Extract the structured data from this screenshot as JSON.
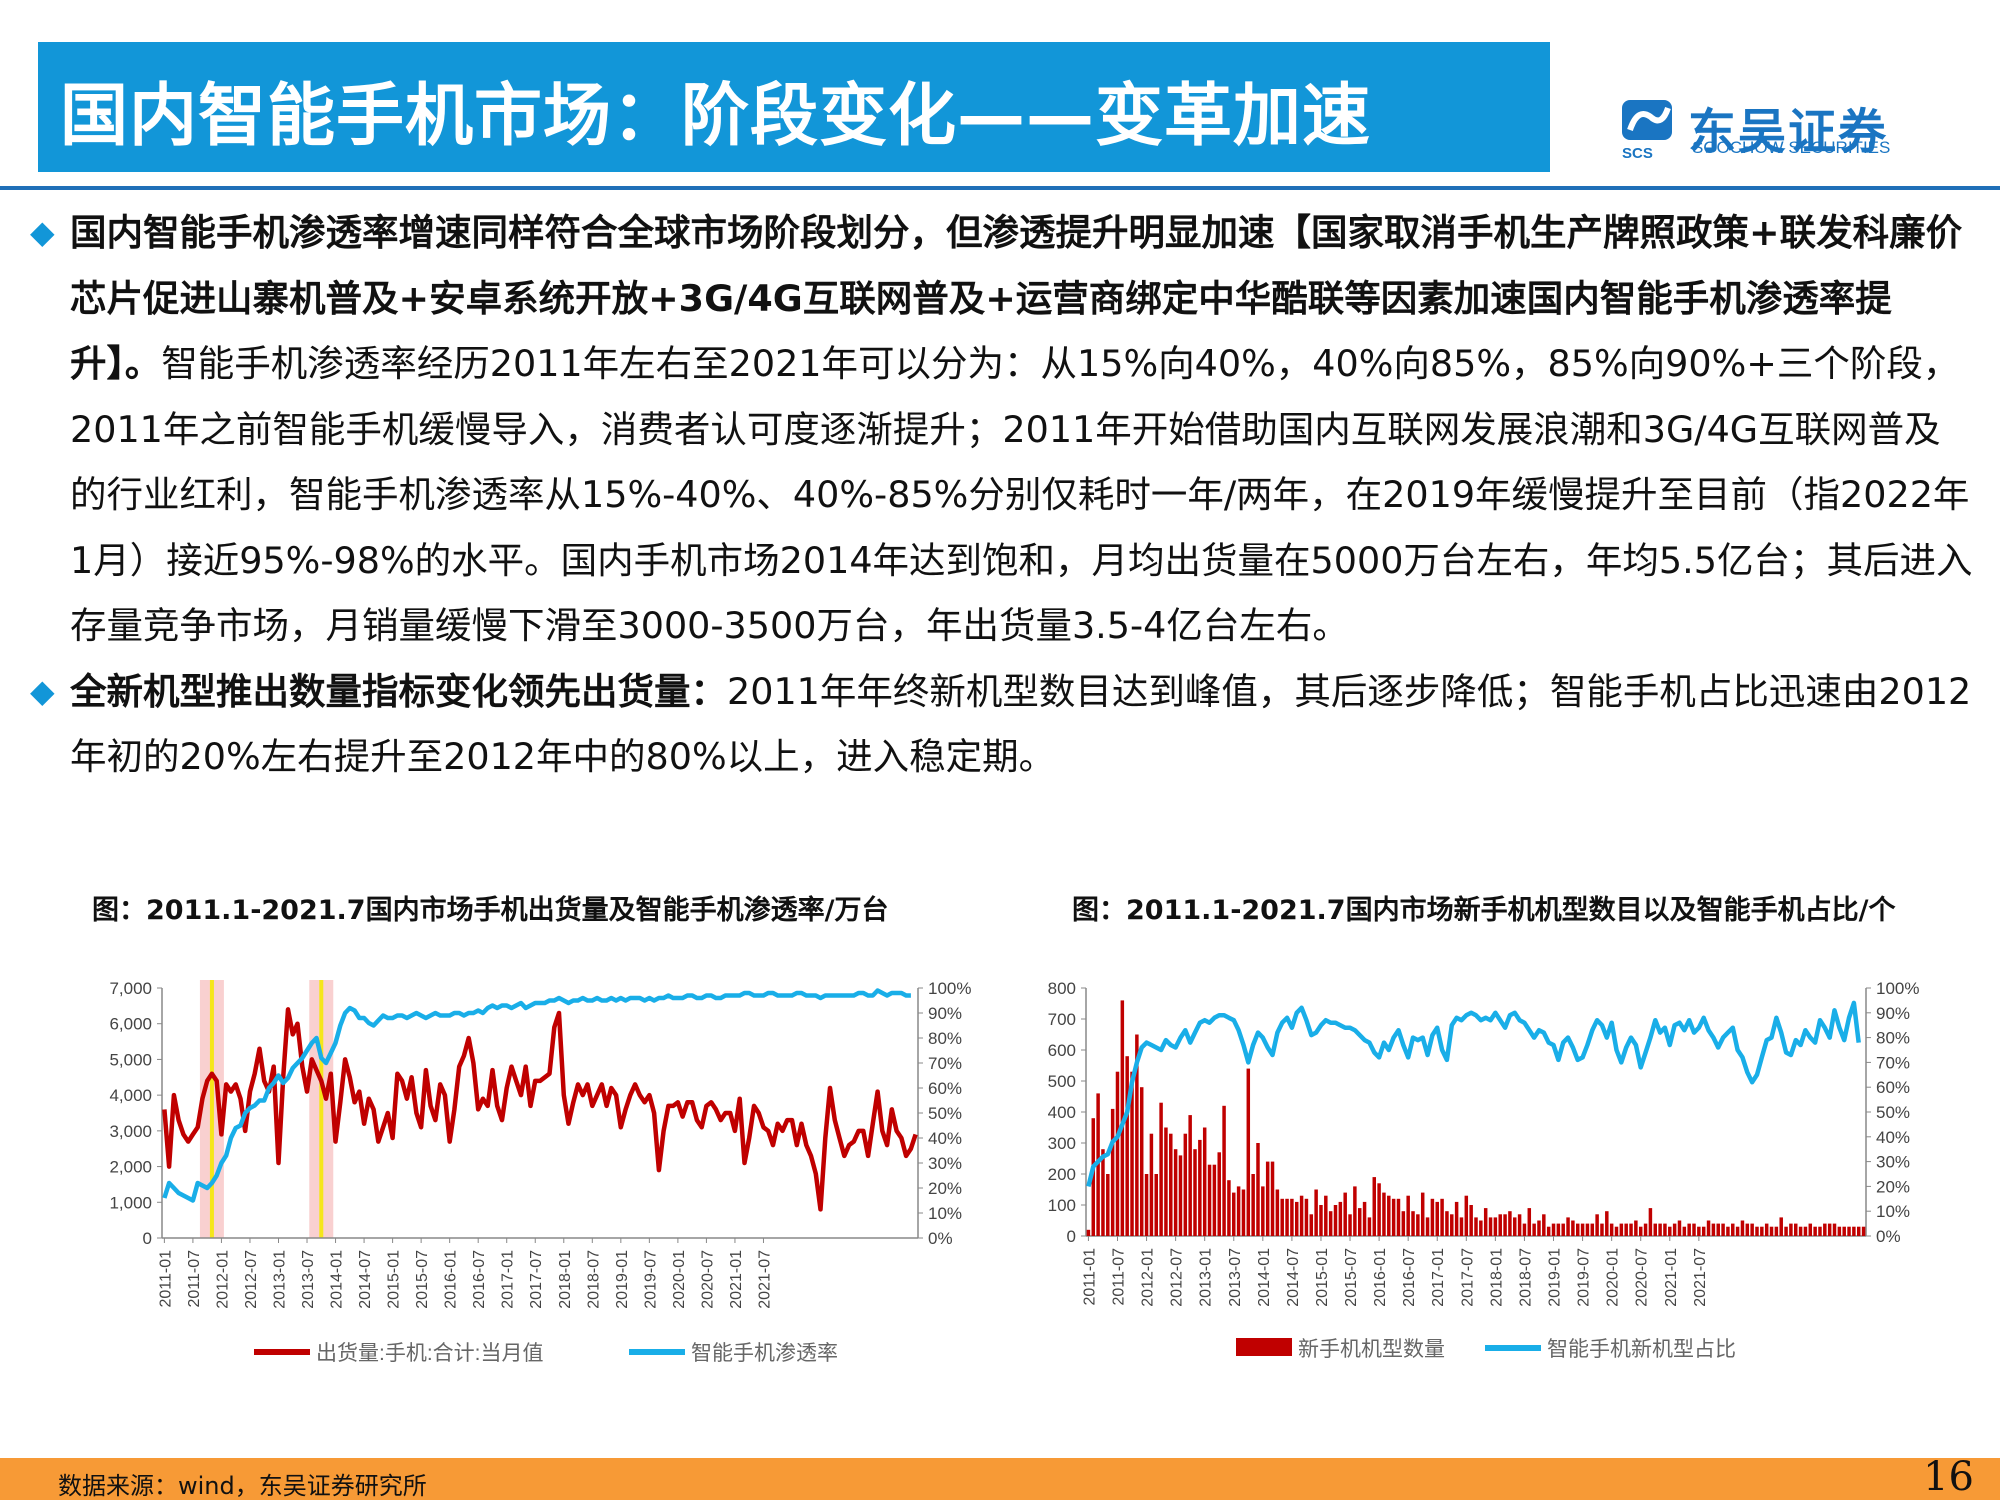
{
  "slide": {
    "title": "国内智能手机市场：阶段变化——变革加速",
    "page_number": "16",
    "source": "数据来源：wind，东吴证券研究所"
  },
  "logo": {
    "cn": "东吴证券",
    "en": "SOOCHOW SECURITIES",
    "mark_text": "SCS"
  },
  "paragraphs": [
    {
      "bold": "国内智能手机渗透率增速同样符合全球市场阶段划分，但渗透提升明显加速【国家取消手机生产牌照政策+联发科廉价芯片促进山寨机普及+安卓系统开放+3G/4G互联网普及+运营商绑定中华酷联等因素加速国内智能手机渗透率提升】。",
      "normal": "智能手机渗透率经历2011年左右至2021年可以分为：从15%向40%，40%向85%，85%向90%+三个阶段，2011年之前智能手机缓慢导入，消费者认可度逐渐提升；2011年开始借助国内互联网发展浪潮和3G/4G互联网普及的行业红利，智能手机渗透率从15%-40%、40%-85%分别仅耗时一年/两年，在2019年缓慢提升至目前（指2022年1月）接近95%-98%的水平。国内手机市场2014年达到饱和，月均出货量在5000万台左右，年均5.5亿台；其后进入存量竞争市场，月销量缓慢下滑至3000-3500万台，年出货量3.5-4亿台左右。"
    },
    {
      "bold": "全新机型推出数量指标变化领先出货量：",
      "normal": "2011年年终新机型数目达到峰值，其后逐步降低；智能手机占比迅速由2012年初的20%左右提升至2012年中的80%以上，进入稳定期。"
    }
  ],
  "chart_data": [
    {
      "type": "line",
      "title": "图：2011.1-2021.7国内市场手机出货量及智能手机渗透率/万台",
      "x_tick_labels": [
        "2011-01",
        "2011-07",
        "2012-01",
        "2012-07",
        "2013-01",
        "2013-07",
        "2014-01",
        "2014-07",
        "2015-01",
        "2015-07",
        "2016-01",
        "2016-07",
        "2017-01",
        "2017-07",
        "2018-01",
        "2018-07",
        "2019-01",
        "2019-07",
        "2020-01",
        "2020-07",
        "2021-01",
        "2021-07"
      ],
      "y_left_ticks": [
        "0",
        "1,000",
        "2,000",
        "3,000",
        "4,000",
        "5,000",
        "6,000",
        "7,000"
      ],
      "y_right_ticks": [
        "0%",
        "10%",
        "20%",
        "30%",
        "40%",
        "50%",
        "60%",
        "70%",
        "80%",
        "90%",
        "100%"
      ],
      "ylim_left": [
        0,
        7000
      ],
      "ylim_right": [
        0,
        100
      ],
      "highlights": [
        "2011-11",
        "2013-10"
      ],
      "series": [
        {
          "name": "出货量:手机:合计:当月值",
          "axis": "left",
          "color": "#c00000",
          "values": [
            3600,
            2000,
            4000,
            3300,
            2900,
            2700,
            2900,
            3100,
            3900,
            4400,
            4600,
            4400,
            2900,
            4300,
            4100,
            4300,
            3900,
            3000,
            4100,
            4600,
            5300,
            4400,
            4100,
            4800,
            2100,
            4500,
            6400,
            5700,
            6000,
            4800,
            4100,
            5000,
            4700,
            4400,
            3900,
            4600,
            2700,
            3800,
            5000,
            4500,
            3800,
            4100,
            3200,
            3900,
            3600,
            2700,
            3100,
            3500,
            2800,
            4600,
            4400,
            3900,
            4500,
            3500,
            3100,
            4700,
            3700,
            3300,
            4300,
            4000,
            2700,
            3600,
            4800,
            5100,
            5600,
            4900,
            3600,
            3900,
            3700,
            4700,
            3700,
            3300,
            4200,
            4800,
            4400,
            4000,
            4800,
            3700,
            4400,
            4400,
            4500,
            4600,
            5900,
            6300,
            4000,
            3200,
            3800,
            4300,
            4000,
            4300,
            3700,
            4000,
            4300,
            3700,
            4200,
            4000,
            3100,
            3600,
            4000,
            4300,
            4000,
            3800,
            4000,
            3500,
            1900,
            3000,
            3700,
            3700,
            3800,
            3400,
            3800,
            3800,
            3300,
            3100,
            3700,
            3800,
            3600,
            3300,
            3500,
            3500,
            3000,
            3900,
            2100,
            2800,
            3700,
            3500,
            3100,
            3000,
            2600,
            3200,
            3000,
            3300,
            3300,
            2600,
            3200,
            2600,
            2300,
            1800,
            800,
            2800,
            4200,
            3300,
            2800,
            2300,
            2600,
            2700,
            3000,
            3000,
            2300,
            3200,
            4100,
            3000,
            2600,
            3600,
            3000,
            2800,
            2300,
            2500,
            2900
          ]
        },
        {
          "name": "智能手机渗透率",
          "axis": "right",
          "color": "#19aee8",
          "values": [
            16,
            22,
            20,
            18,
            17,
            16,
            15,
            22,
            21,
            20,
            22,
            25,
            30,
            33,
            40,
            44,
            45,
            50,
            52,
            53,
            55,
            55,
            60,
            62,
            65,
            62,
            64,
            68,
            70,
            72,
            75,
            78,
            80,
            72,
            70,
            74,
            78,
            85,
            90,
            92,
            91,
            88,
            88,
            86,
            85,
            87,
            89,
            88,
            88,
            89,
            89,
            88,
            89,
            90,
            89,
            88,
            89,
            90,
            89,
            89,
            89,
            90,
            90,
            89,
            90,
            90,
            91,
            90,
            92,
            93,
            92,
            93,
            93,
            92,
            93,
            94,
            92,
            93,
            94,
            94,
            94,
            95,
            95,
            96,
            95,
            94,
            95,
            95,
            96,
            95,
            95,
            96,
            95,
            95,
            96,
            95,
            96,
            95,
            96,
            96,
            96,
            95,
            96,
            95,
            96,
            96,
            97,
            96,
            96,
            96,
            97,
            97,
            96,
            96,
            97,
            97,
            96,
            96,
            97,
            97,
            97,
            97,
            98,
            98,
            97,
            97,
            97,
            98,
            98,
            97,
            97,
            97,
            97,
            98,
            98,
            97,
            97,
            97,
            96,
            97,
            97,
            97,
            97,
            97,
            97,
            97,
            98,
            98,
            97,
            97,
            99,
            98,
            97,
            98,
            98,
            98,
            97,
            97
          ]
        }
      ]
    },
    {
      "type": "bar",
      "title": "图：2011.1-2021.7国内市场新手机机型数目以及智能手机占比/个",
      "x_tick_labels": [
        "2011-01",
        "2011-07",
        "2012-01",
        "2012-07",
        "2013-01",
        "2013-07",
        "2014-01",
        "2014-07",
        "2015-01",
        "2015-07",
        "2016-01",
        "2016-07",
        "2017-01",
        "2017-07",
        "2018-01",
        "2018-07",
        "2019-01",
        "2019-07",
        "2020-01",
        "2020-07",
        "2021-01",
        "2021-07"
      ],
      "y_left_ticks": [
        "0",
        "100",
        "200",
        "300",
        "400",
        "500",
        "600",
        "700",
        "800"
      ],
      "y_right_ticks": [
        "0%",
        "10%",
        "20%",
        "30%",
        "40%",
        "50%",
        "60%",
        "70%",
        "80%",
        "90%",
        "100%"
      ],
      "ylim_left": [
        0,
        800
      ],
      "ylim_right": [
        0,
        100
      ],
      "series": [
        {
          "name": "新手机机型数量",
          "type": "bar",
          "axis": "left",
          "color": "#c00000",
          "values": [
            20,
            380,
            460,
            280,
            200,
            410,
            530,
            760,
            580,
            530,
            650,
            480,
            200,
            330,
            200,
            430,
            350,
            330,
            280,
            260,
            330,
            390,
            280,
            310,
            350,
            230,
            230,
            270,
            420,
            180,
            140,
            160,
            150,
            540,
            200,
            300,
            160,
            240,
            240,
            150,
            120,
            120,
            120,
            110,
            130,
            120,
            70,
            150,
            100,
            130,
            80,
            100,
            110,
            140,
            70,
            160,
            90,
            110,
            60,
            190,
            170,
            140,
            130,
            120,
            120,
            80,
            130,
            80,
            70,
            140,
            60,
            120,
            110,
            120,
            80,
            70,
            110,
            60,
            130,
            100,
            60,
            50,
            90,
            60,
            60,
            70,
            70,
            80,
            60,
            70,
            40,
            90,
            40,
            50,
            70,
            30,
            40,
            40,
            40,
            60,
            50,
            40,
            40,
            40,
            40,
            70,
            40,
            80,
            40,
            30,
            40,
            40,
            40,
            50,
            30,
            40,
            90,
            40,
            40,
            40,
            30,
            40,
            50,
            30,
            40,
            40,
            30,
            30,
            50,
            40,
            40,
            40,
            30,
            40,
            30,
            50,
            40,
            40,
            30,
            30,
            40,
            30,
            30,
            60,
            30,
            40,
            40,
            30,
            30,
            40,
            30,
            30,
            40,
            40,
            40,
            30,
            30,
            30,
            30,
            30,
            30
          ]
        },
        {
          "name": "智能手机新机型占比",
          "type": "line",
          "axis": "right",
          "color": "#19aee8",
          "values": [
            20,
            28,
            30,
            32,
            33,
            38,
            40,
            45,
            50,
            62,
            70,
            76,
            78,
            77,
            76,
            75,
            79,
            77,
            76,
            80,
            83,
            78,
            82,
            86,
            87,
            86,
            88,
            89,
            89,
            88,
            87,
            83,
            77,
            70,
            77,
            82,
            80,
            76,
            73,
            82,
            86,
            88,
            84,
            90,
            92,
            87,
            81,
            82,
            85,
            87,
            86,
            86,
            85,
            84,
            84,
            83,
            81,
            79,
            78,
            74,
            72,
            78,
            75,
            80,
            83,
            77,
            72,
            80,
            79,
            80,
            73,
            81,
            84,
            75,
            71,
            85,
            88,
            87,
            89,
            90,
            89,
            87,
            88,
            87,
            90,
            87,
            84,
            89,
            90,
            87,
            86,
            83,
            80,
            83,
            82,
            78,
            77,
            71,
            78,
            80,
            76,
            71,
            72,
            77,
            83,
            87,
            85,
            80,
            86,
            75,
            70,
            76,
            80,
            77,
            68,
            74,
            80,
            87,
            82,
            84,
            77,
            85,
            86,
            83,
            87,
            82,
            84,
            88,
            83,
            80,
            76,
            80,
            82,
            84,
            75,
            72,
            66,
            62,
            65,
            72,
            79,
            80,
            88,
            82,
            74,
            73,
            79,
            77,
            83,
            80,
            78,
            87,
            84,
            80,
            91,
            84,
            79,
            88,
            94,
            78
          ]
        }
      ]
    }
  ]
}
